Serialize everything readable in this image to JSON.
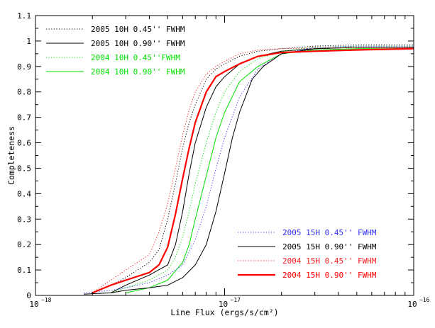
{
  "chart_data": {
    "type": "line",
    "xlabel": "Line Flux (ergs/s/cm²)",
    "ylabel": "Completeness",
    "xscale": "log",
    "xlim": [
      1e-18,
      1e-16
    ],
    "ylim": [
      0,
      1.1
    ],
    "x_ticks": [
      {
        "value": 1e-18,
        "label": "10",
        "exp": "−18"
      },
      {
        "value": 1e-17,
        "label": "10",
        "exp": "−17"
      },
      {
        "value": 1e-16,
        "label": "10",
        "exp": "−16"
      }
    ],
    "y_ticks": [
      "0",
      "0.1",
      "0.2",
      "0.3",
      "0.4",
      "0.5",
      "0.6",
      "0.7",
      "0.8",
      "0.9",
      "1",
      "1.1"
    ],
    "grid": false,
    "legends": [
      {
        "placement": "top-left",
        "series": [
          0,
          1,
          2,
          3
        ]
      },
      {
        "placement": "bottom-right",
        "series": [
          4,
          5,
          6,
          7
        ]
      }
    ],
    "series": [
      {
        "name": "2005 10H 0.45'' FWHM",
        "color": "#000000",
        "style": "dotted",
        "width": 1,
        "points": [
          [
            2e-18,
            0.01
          ],
          [
            2.5e-18,
            0.04
          ],
          [
            3e-18,
            0.07
          ],
          [
            4e-18,
            0.13
          ],
          [
            4.5e-18,
            0.18
          ],
          [
            5e-18,
            0.3
          ],
          [
            5.5e-18,
            0.44
          ],
          [
            6e-18,
            0.58
          ],
          [
            6.5e-18,
            0.68
          ],
          [
            7e-18,
            0.75
          ],
          [
            8e-18,
            0.85
          ],
          [
            9e-18,
            0.89
          ],
          [
            1e-17,
            0.91
          ],
          [
            1.2e-17,
            0.94
          ],
          [
            1.5e-17,
            0.96
          ],
          [
            2e-17,
            0.97
          ],
          [
            3e-17,
            0.98
          ],
          [
            5e-17,
            0.985
          ],
          [
            1e-16,
            0.985
          ]
        ]
      },
      {
        "name": "2005 10H 0.90'' FWHM",
        "color": "#000000",
        "style": "solid",
        "width": 1,
        "points": [
          [
            2.5e-18,
            0.01
          ],
          [
            3e-18,
            0.04
          ],
          [
            4e-18,
            0.08
          ],
          [
            5e-18,
            0.12
          ],
          [
            5.5e-18,
            0.2
          ],
          [
            6e-18,
            0.33
          ],
          [
            6.5e-18,
            0.48
          ],
          [
            7e-18,
            0.6
          ],
          [
            8e-18,
            0.74
          ],
          [
            9e-18,
            0.82
          ],
          [
            1e-17,
            0.86
          ],
          [
            1.2e-17,
            0.91
          ],
          [
            1.5e-17,
            0.94
          ],
          [
            2e-17,
            0.96
          ],
          [
            3e-17,
            0.97
          ],
          [
            5e-17,
            0.975
          ],
          [
            1e-16,
            0.975
          ]
        ]
      },
      {
        "name": "2004 10H 0.45''FWHM",
        "color": "#00e000",
        "style": "dotted",
        "width": 1,
        "points": [
          [
            2.5e-18,
            0.01
          ],
          [
            3e-18,
            0.03
          ],
          [
            4e-18,
            0.06
          ],
          [
            5e-18,
            0.1
          ],
          [
            5.5e-18,
            0.15
          ],
          [
            6e-18,
            0.23
          ],
          [
            6.5e-18,
            0.33
          ],
          [
            7e-18,
            0.44
          ],
          [
            8e-18,
            0.6
          ],
          [
            9e-18,
            0.72
          ],
          [
            1e-17,
            0.8
          ],
          [
            1.2e-17,
            0.88
          ],
          [
            1.5e-17,
            0.93
          ],
          [
            2e-17,
            0.96
          ],
          [
            3e-17,
            0.975
          ],
          [
            5e-17,
            0.98
          ],
          [
            1e-16,
            0.98
          ]
        ]
      },
      {
        "name": "2004 10H 0.90'' FWHM",
        "color": "#00e000",
        "style": "solid",
        "width": 1,
        "points": [
          [
            3e-18,
            0.01
          ],
          [
            4e-18,
            0.03
          ],
          [
            5e-18,
            0.06
          ],
          [
            6e-18,
            0.13
          ],
          [
            6.5e-18,
            0.2
          ],
          [
            7e-18,
            0.3
          ],
          [
            8e-18,
            0.47
          ],
          [
            9e-18,
            0.62
          ],
          [
            1e-17,
            0.72
          ],
          [
            1.2e-17,
            0.84
          ],
          [
            1.5e-17,
            0.9
          ],
          [
            2e-17,
            0.95
          ],
          [
            3e-17,
            0.965
          ],
          [
            5e-17,
            0.97
          ],
          [
            1e-16,
            0.97
          ]
        ]
      },
      {
        "name": "2005 15H 0.45'' FWHM",
        "color": "#3333ff",
        "style": "dotted",
        "width": 1,
        "points": [
          [
            1.8e-18,
            0.01
          ],
          [
            2.5e-18,
            0.02
          ],
          [
            3e-18,
            0.03
          ],
          [
            4e-18,
            0.05
          ],
          [
            5e-18,
            0.08
          ],
          [
            6e-18,
            0.12
          ],
          [
            7e-18,
            0.22
          ],
          [
            8e-18,
            0.35
          ],
          [
            9e-18,
            0.5
          ],
          [
            1e-17,
            0.62
          ],
          [
            1.2e-17,
            0.78
          ],
          [
            1.5e-17,
            0.89
          ],
          [
            2e-17,
            0.95
          ],
          [
            3e-17,
            0.975
          ],
          [
            5e-17,
            0.98
          ],
          [
            1e-16,
            0.98
          ]
        ]
      },
      {
        "name": "2005 15H 0.90'' FWHM",
        "color": "#000000",
        "style": "solid",
        "width": 1,
        "points": [
          [
            1.8e-18,
            0.005
          ],
          [
            2.5e-18,
            0.01
          ],
          [
            3e-18,
            0.02
          ],
          [
            4e-18,
            0.03
          ],
          [
            5e-18,
            0.04
          ],
          [
            6e-18,
            0.07
          ],
          [
            7e-18,
            0.12
          ],
          [
            8e-18,
            0.2
          ],
          [
            9e-18,
            0.33
          ],
          [
            1e-17,
            0.48
          ],
          [
            1.1e-17,
            0.62
          ],
          [
            1.2e-17,
            0.72
          ],
          [
            1.4e-17,
            0.85
          ],
          [
            1.6e-17,
            0.9
          ],
          [
            2e-17,
            0.95
          ],
          [
            3e-17,
            0.97
          ],
          [
            5e-17,
            0.975
          ],
          [
            1e-16,
            0.975
          ]
        ]
      },
      {
        "name": "2004 15H 0.45'' FWHM",
        "color": "#ff2020",
        "style": "dotted",
        "width": 1,
        "points": [
          [
            2e-18,
            0.01
          ],
          [
            2.5e-18,
            0.06
          ],
          [
            3e-18,
            0.1
          ],
          [
            4e-18,
            0.16
          ],
          [
            4.5e-18,
            0.25
          ],
          [
            5e-18,
            0.36
          ],
          [
            5.5e-18,
            0.5
          ],
          [
            6e-18,
            0.63
          ],
          [
            6.5e-18,
            0.73
          ],
          [
            7e-18,
            0.8
          ],
          [
            8e-18,
            0.87
          ],
          [
            9e-18,
            0.9
          ],
          [
            1e-17,
            0.92
          ],
          [
            1.2e-17,
            0.95
          ],
          [
            1.5e-17,
            0.965
          ],
          [
            2e-17,
            0.97
          ],
          [
            5e-17,
            0.975
          ],
          [
            1e-16,
            0.975
          ]
        ]
      },
      {
        "name": "2004 15H 0.90'' FWHM",
        "color": "#ff0000",
        "style": "solid",
        "width": 2.2,
        "points": [
          [
            2e-18,
            0.01
          ],
          [
            2.5e-18,
            0.04
          ],
          [
            3e-18,
            0.06
          ],
          [
            4e-18,
            0.09
          ],
          [
            4.5e-18,
            0.12
          ],
          [
            5e-18,
            0.19
          ],
          [
            5.5e-18,
            0.32
          ],
          [
            6e-18,
            0.46
          ],
          [
            6.5e-18,
            0.58
          ],
          [
            7e-18,
            0.68
          ],
          [
            8e-18,
            0.8
          ],
          [
            9e-18,
            0.86
          ],
          [
            1e-17,
            0.88
          ],
          [
            1.2e-17,
            0.91
          ],
          [
            1.5e-17,
            0.94
          ],
          [
            2e-17,
            0.955
          ],
          [
            3e-17,
            0.96
          ],
          [
            5e-17,
            0.965
          ],
          [
            1e-16,
            0.97
          ]
        ]
      }
    ]
  }
}
